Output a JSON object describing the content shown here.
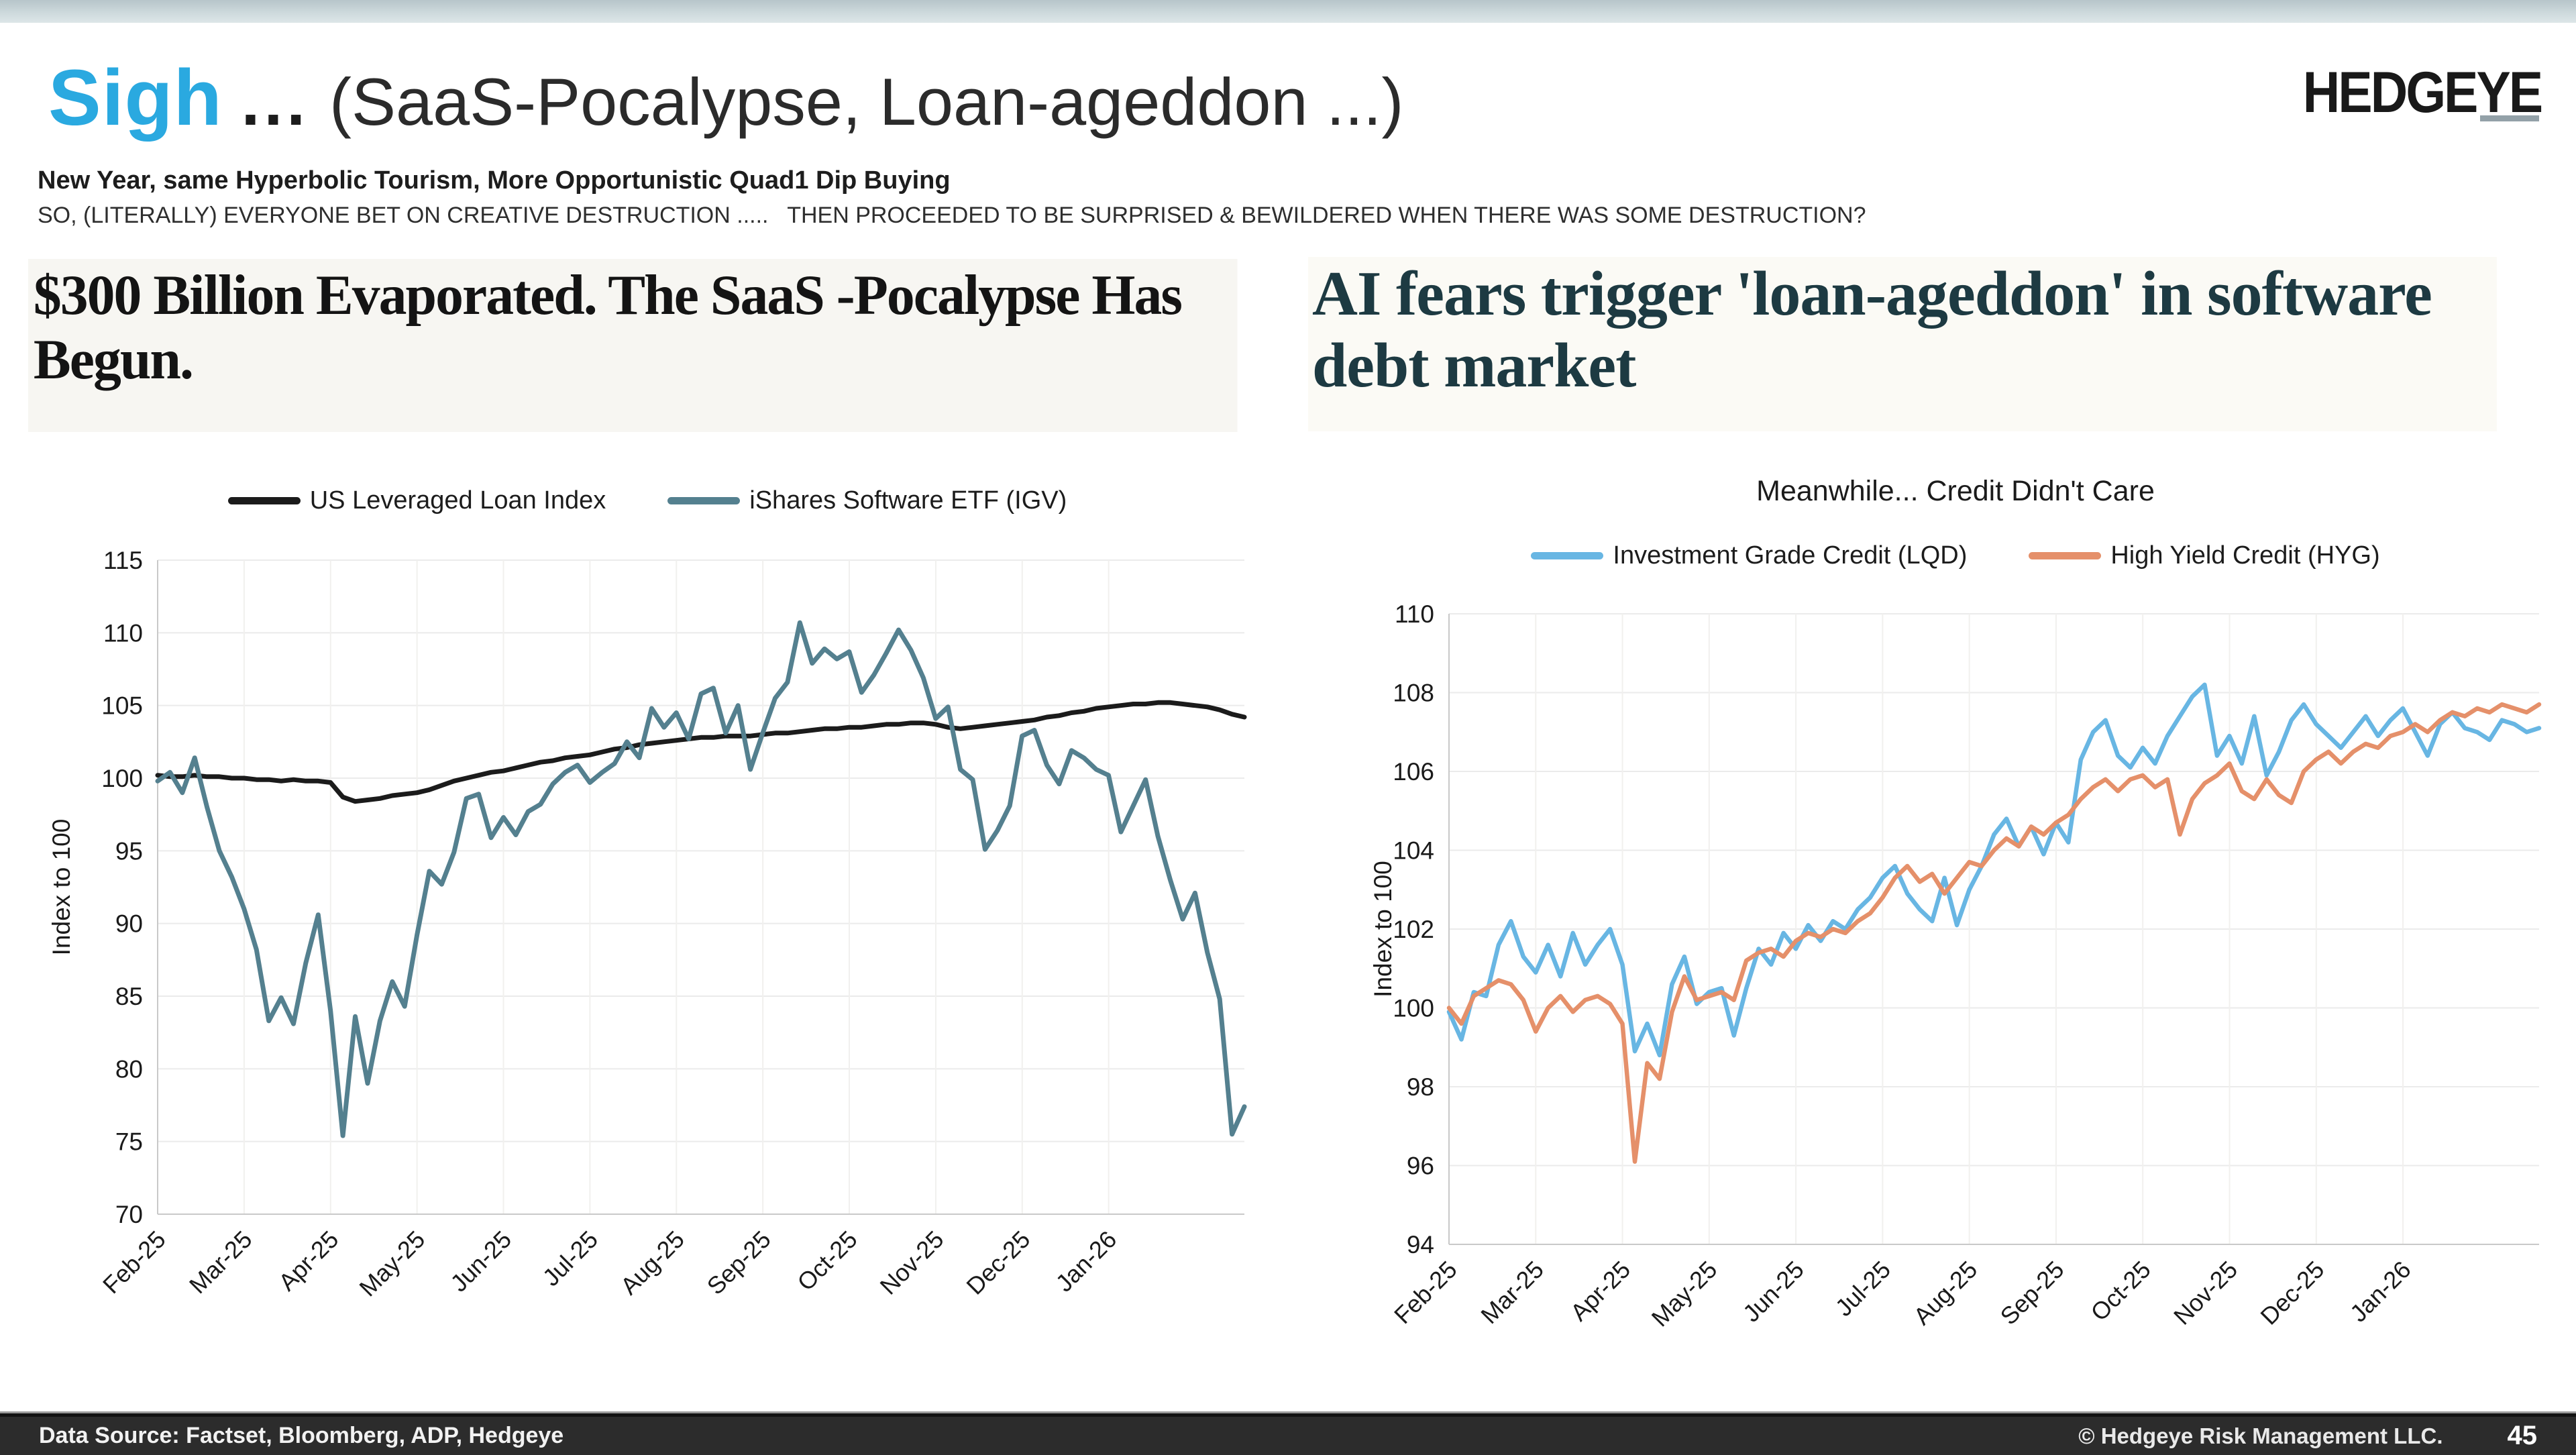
{
  "header": {
    "title_accent": "Sigh",
    "title_dots": "...",
    "title_rest": "(SaaS-Pocalypse, Loan-ageddon ...)",
    "logo": "HEDGEYE",
    "subtitle_line1": "New Year, same Hyperbolic Tourism, More Opportunistic Quad1 Dip Buying",
    "subtitle_line2": "SO, (LITERALLY) EVERYONE BET ON CREATIVE DESTRUCTION .....   THEN PROCEEDED TO BE SURPRISED & BEWILDERED WHEN THERE WAS SOME DESTRUCTION?",
    "accent_color": "#2aa9e0"
  },
  "headlines": {
    "left": {
      "text": "$300 Billion Evaporated. The SaaS -Pocalypse Has Begun."
    },
    "right": {
      "text": "AI fears trigger 'loan-ageddon' in software debt market",
      "color": "#1d3a42"
    }
  },
  "chart_data": [
    {
      "type": "line",
      "title": "",
      "xlabel": "",
      "ylabel": "Index to 100",
      "ylim": [
        70,
        115
      ],
      "y_step": 5,
      "grid": true,
      "legend_position": "top",
      "x_tick_labels": [
        "Feb-25",
        "Mar-25",
        "Apr-25",
        "May-25",
        "Jun-25",
        "Jul-25",
        "Aug-25",
        "Sep-25",
        "Oct-25",
        "Nov-25",
        "Dec-25",
        "Jan-26"
      ],
      "x_span_months": 12.57,
      "series": [
        {
          "name": "US Leveraged Loan Index",
          "color": "#1b1b1b",
          "width": 7,
          "values": [
            100.2,
            100.1,
            100.1,
            100.2,
            100.1,
            100.1,
            100.0,
            100.0,
            99.9,
            99.9,
            99.8,
            99.9,
            99.8,
            99.8,
            99.7,
            98.7,
            98.4,
            98.5,
            98.6,
            98.8,
            98.9,
            99.0,
            99.2,
            99.5,
            99.8,
            100.0,
            100.2,
            100.4,
            100.5,
            100.7,
            100.9,
            101.1,
            101.2,
            101.4,
            101.5,
            101.6,
            101.8,
            102.0,
            102.1,
            102.3,
            102.4,
            102.5,
            102.6,
            102.7,
            102.8,
            102.8,
            102.9,
            102.9,
            102.9,
            103.0,
            103.1,
            103.1,
            103.2,
            103.3,
            103.4,
            103.4,
            103.5,
            103.5,
            103.6,
            103.7,
            103.7,
            103.8,
            103.8,
            103.7,
            103.5,
            103.4,
            103.5,
            103.6,
            103.7,
            103.8,
            103.9,
            104.0,
            104.2,
            104.3,
            104.5,
            104.6,
            104.8,
            104.9,
            105.0,
            105.1,
            105.1,
            105.2,
            105.2,
            105.1,
            105.0,
            104.9,
            104.7,
            104.4,
            104.2
          ]
        },
        {
          "name": "iShares Software ETF (IGV)",
          "color": "#54808f",
          "width": 7,
          "values": [
            99.8,
            100.4,
            99.0,
            101.4,
            98.0,
            95.0,
            93.2,
            91.0,
            88.2,
            83.3,
            84.9,
            83.1,
            87.3,
            90.6,
            84.0,
            75.4,
            83.6,
            79.0,
            83.3,
            86.0,
            84.3,
            89.2,
            93.6,
            92.7,
            94.9,
            98.6,
            98.9,
            95.9,
            97.3,
            96.1,
            97.7,
            98.2,
            99.6,
            100.4,
            100.9,
            99.7,
            100.4,
            101.0,
            102.5,
            101.4,
            104.8,
            103.5,
            104.5,
            102.7,
            105.8,
            106.2,
            103.1,
            105.0,
            100.6,
            103.1,
            105.5,
            106.6,
            110.7,
            107.9,
            108.9,
            108.2,
            108.7,
            105.9,
            107.1,
            108.6,
            110.2,
            108.8,
            106.9,
            104.1,
            104.9,
            100.6,
            99.9,
            95.1,
            96.4,
            98.1,
            102.9,
            103.3,
            100.9,
            99.6,
            101.9,
            101.4,
            100.6,
            100.2,
            96.3,
            98.1,
            99.9,
            96.0,
            93.0,
            90.3,
            92.1,
            88.0,
            84.8,
            75.5,
            77.4
          ]
        }
      ]
    },
    {
      "type": "line",
      "title": "Meanwhile... Credit Didn't Care",
      "xlabel": "",
      "ylabel": "Index to 100",
      "ylim": [
        94,
        110
      ],
      "y_step": 2,
      "grid": true,
      "legend_position": "top",
      "x_tick_labels": [
        "Feb-25",
        "Mar-25",
        "Apr-25",
        "May-25",
        "Jun-25",
        "Jul-25",
        "Aug-25",
        "Sep-25",
        "Oct-25",
        "Nov-25",
        "Dec-25",
        "Jan-26"
      ],
      "x_span_months": 12.57,
      "series": [
        {
          "name": "Investment Grade Credit (LQD)",
          "color": "#68b6e3",
          "width": 6.5,
          "values": [
            99.9,
            99.2,
            100.4,
            100.3,
            101.6,
            102.2,
            101.3,
            100.9,
            101.6,
            100.8,
            101.9,
            101.1,
            101.6,
            102.0,
            101.1,
            98.9,
            99.6,
            98.8,
            100.6,
            101.3,
            100.1,
            100.4,
            100.5,
            99.3,
            100.5,
            101.5,
            101.1,
            101.9,
            101.5,
            102.1,
            101.7,
            102.2,
            102.0,
            102.5,
            102.8,
            103.3,
            103.6,
            102.9,
            102.5,
            102.2,
            103.3,
            102.1,
            103.0,
            103.6,
            104.4,
            104.8,
            104.1,
            104.6,
            103.9,
            104.7,
            104.2,
            106.3,
            107.0,
            107.3,
            106.4,
            106.1,
            106.6,
            106.2,
            106.9,
            107.4,
            107.9,
            108.2,
            106.4,
            106.9,
            106.2,
            107.4,
            105.9,
            106.5,
            107.3,
            107.7,
            107.2,
            106.9,
            106.6,
            107.0,
            107.4,
            106.9,
            107.3,
            107.6,
            107.0,
            106.4,
            107.2,
            107.5,
            107.1,
            107.0,
            106.8,
            107.3,
            107.2,
            107.0,
            107.1
          ]
        },
        {
          "name": "High Yield Credit (HYG)",
          "color": "#e5906a",
          "width": 6.5,
          "values": [
            100.0,
            99.6,
            100.3,
            100.5,
            100.7,
            100.6,
            100.2,
            99.4,
            100.0,
            100.3,
            99.9,
            100.2,
            100.3,
            100.1,
            99.6,
            96.1,
            98.6,
            98.2,
            99.9,
            100.8,
            100.2,
            100.3,
            100.4,
            100.2,
            101.2,
            101.4,
            101.5,
            101.3,
            101.7,
            101.9,
            101.8,
            102.0,
            101.9,
            102.2,
            102.4,
            102.8,
            103.3,
            103.6,
            103.2,
            103.4,
            102.9,
            103.3,
            103.7,
            103.6,
            104.0,
            104.3,
            104.1,
            104.6,
            104.4,
            104.7,
            104.9,
            105.3,
            105.6,
            105.8,
            105.5,
            105.8,
            105.9,
            105.6,
            105.8,
            104.4,
            105.3,
            105.7,
            105.9,
            106.2,
            105.5,
            105.3,
            105.8,
            105.4,
            105.2,
            106.0,
            106.3,
            106.5,
            106.2,
            106.5,
            106.7,
            106.6,
            106.9,
            107.0,
            107.2,
            107.0,
            107.3,
            107.5,
            107.4,
            107.6,
            107.5,
            107.7,
            107.6,
            107.5,
            107.7
          ]
        }
      ]
    }
  ],
  "footer": {
    "source": "Data Source: Factset, Bloomberg, ADP, Hedgeye",
    "copyright": "© Hedgeye Risk Management LLC.",
    "page": "45"
  }
}
